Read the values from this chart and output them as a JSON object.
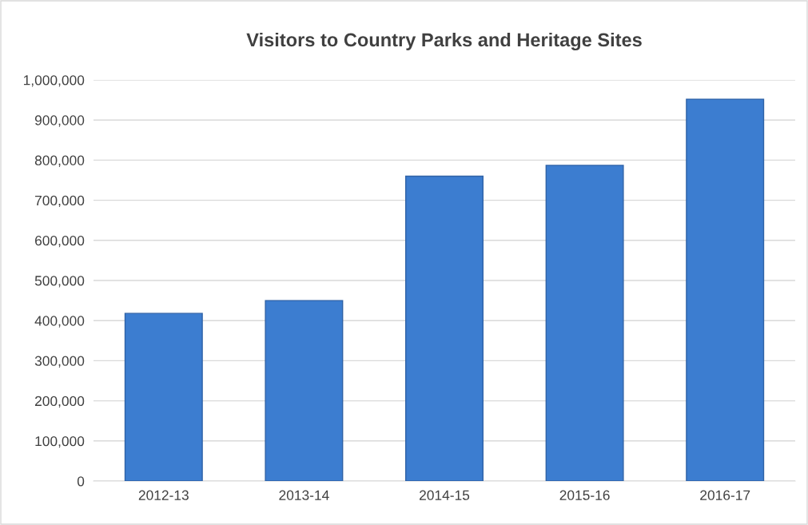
{
  "chart_data": {
    "type": "bar",
    "title": "Visitors to Country Parks and Heritage Sites",
    "categories": [
      "2012-13",
      "2013-14",
      "2014-15",
      "2015-16",
      "2016-17"
    ],
    "values": [
      418000,
      450000,
      760000,
      787000,
      952000
    ],
    "color": "#3c7dd0",
    "ylim": [
      0,
      1000000
    ],
    "yticks": [
      {
        "value": 0,
        "label": "0"
      },
      {
        "value": 100000,
        "label": "100,000"
      },
      {
        "value": 200000,
        "label": "200,000"
      },
      {
        "value": 300000,
        "label": "300,000"
      },
      {
        "value": 400000,
        "label": "400,000"
      },
      {
        "value": 500000,
        "label": "500,000"
      },
      {
        "value": 600000,
        "label": "600,000"
      },
      {
        "value": 700000,
        "label": "700,000"
      },
      {
        "value": 800000,
        "label": "800,000"
      },
      {
        "value": 900000,
        "label": "900,000"
      },
      {
        "value": 1000000,
        "label": "1,000,000"
      }
    ],
    "grid": "y",
    "legend": false
  }
}
